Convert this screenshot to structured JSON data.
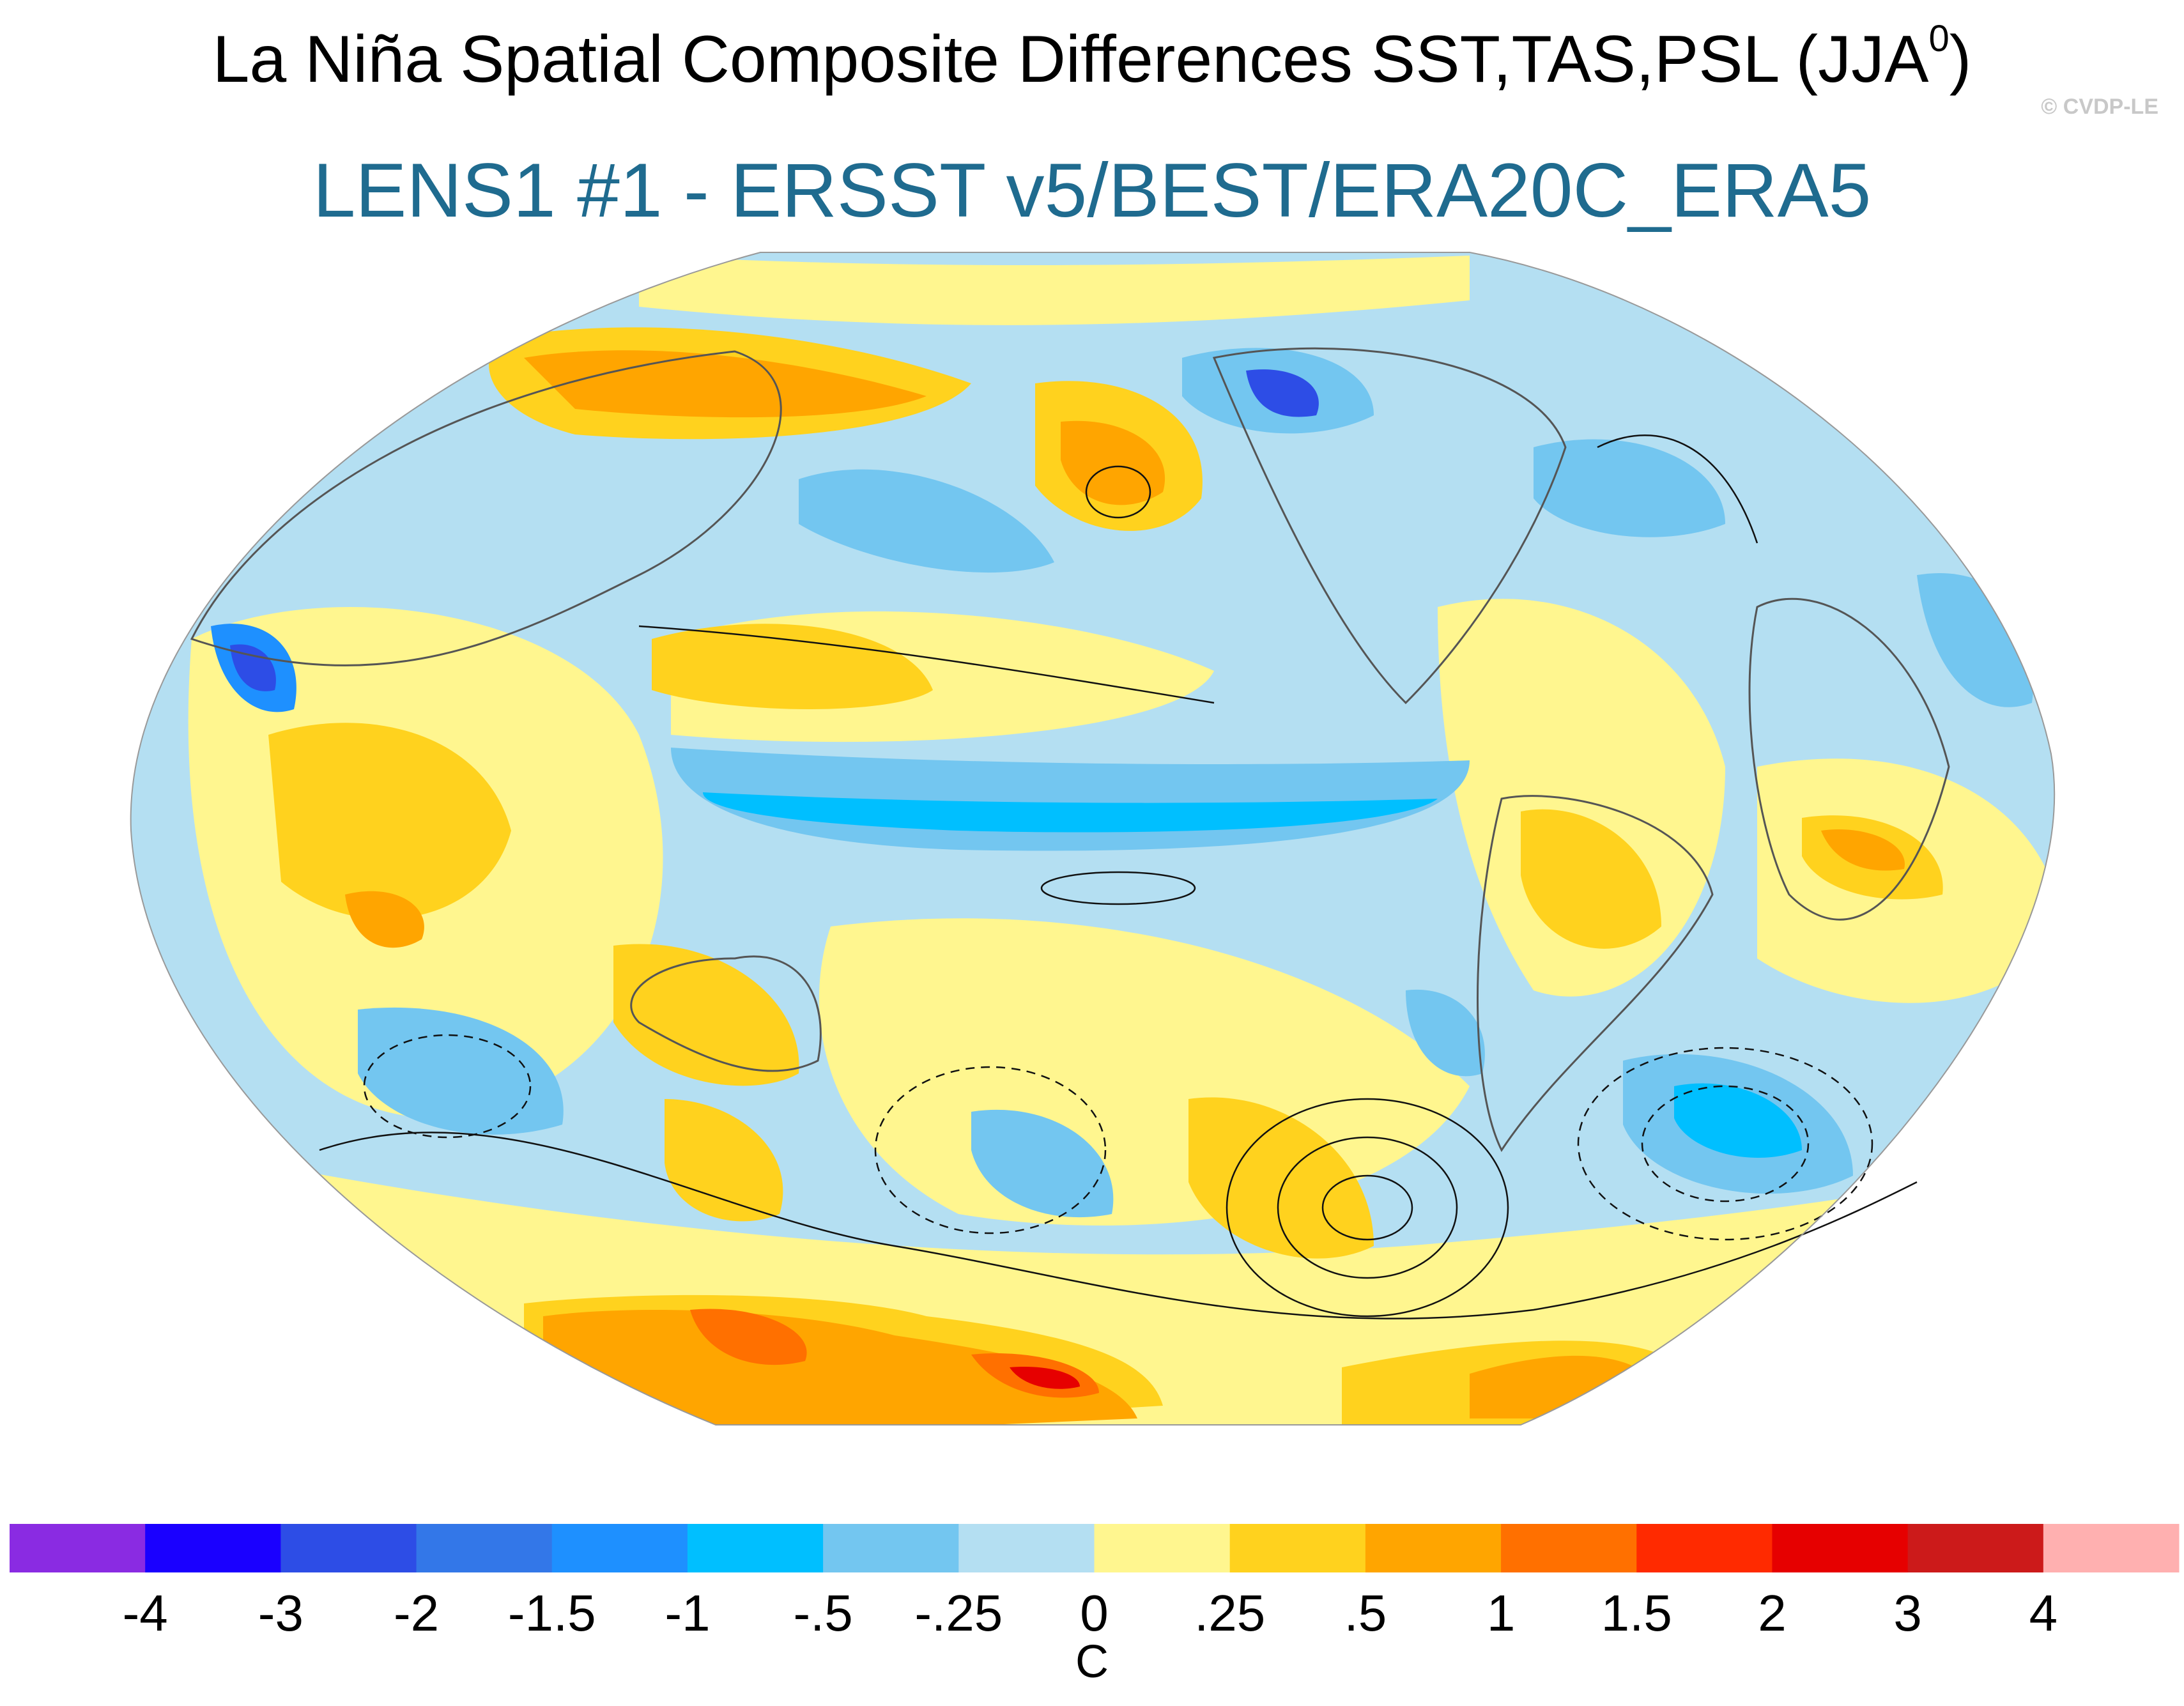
{
  "title": "La Niña Spatial Composite Differences SST,TAS,PSL (JJA",
  "title_superscript": "0",
  "title_close": ")",
  "subtitle": "LENS1 #1 - ERSST v5/BEST/ERA20C_ERA5",
  "copyright": "© CVDP-LE",
  "colorbar": {
    "unit": "C",
    "colors": [
      "#8a2be2",
      "#1a00ff",
      "#2d4de6",
      "#3377e8",
      "#1e90ff",
      "#00bfff",
      "#73c6f0",
      "#b4dff2",
      "#fff68f",
      "#ffd21e",
      "#ffa500",
      "#ff7000",
      "#ff2a00",
      "#e60000",
      "#cc1a1a",
      "#ffb0b0"
    ],
    "tick_labels": [
      "-4",
      "-3",
      "-2",
      "-1.5",
      "-1",
      "-.5",
      "-.25",
      "0",
      ".25",
      ".5",
      "1",
      "1.5",
      "2",
      "3",
      "4"
    ]
  }
}
